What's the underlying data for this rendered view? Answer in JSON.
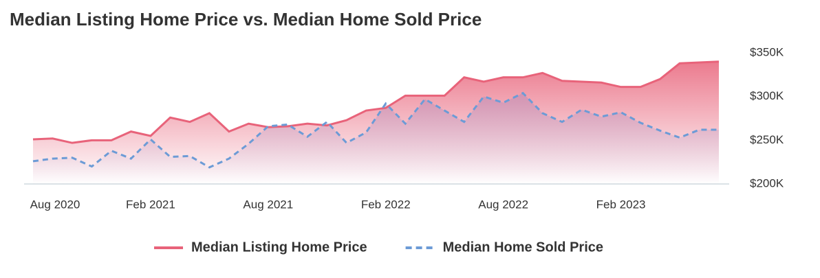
{
  "chart_data": {
    "type": "line",
    "title": "Median Listing Home Price vs. Median Home Sold Price",
    "categories": [
      "Aug 2020",
      null,
      null,
      null,
      null,
      null,
      "Feb 2021",
      null,
      null,
      null,
      null,
      null,
      "Aug 2021",
      null,
      null,
      null,
      null,
      null,
      "Feb 2022",
      null,
      null,
      null,
      null,
      null,
      "Aug 2022",
      null,
      null,
      null,
      null,
      null,
      "Feb 2023",
      null,
      null,
      null,
      null,
      null
    ],
    "series": [
      {
        "name": "Median Listing Home Price",
        "color": "#e8637a",
        "dashed": false,
        "values": [
          251000,
          252000,
          247000,
          250000,
          250000,
          260000,
          255000,
          276000,
          271000,
          281000,
          260000,
          269000,
          265000,
          266000,
          269000,
          267000,
          273000,
          284000,
          287000,
          301000,
          301000,
          301000,
          322000,
          317000,
          322000,
          322000,
          327000,
          318000,
          317000,
          316000,
          311000,
          311000,
          320000,
          338000,
          339000,
          340000
        ]
      },
      {
        "name": "Median Home Sold Price",
        "color": "#6c9bd6",
        "dashed": true,
        "values": [
          226000,
          229000,
          230000,
          220000,
          238000,
          229000,
          251000,
          231000,
          232000,
          219000,
          229000,
          246000,
          266000,
          268000,
          254000,
          271000,
          247000,
          259000,
          292000,
          269000,
          297000,
          284000,
          271000,
          300000,
          293000,
          304000,
          281000,
          271000,
          285000,
          277000,
          282000,
          270000,
          261000,
          253000,
          262000,
          262000
        ]
      }
    ],
    "ylim": [
      200000,
      350000
    ],
    "yticks": [
      {
        "value": 200000,
        "label": "$200K"
      },
      {
        "value": 250000,
        "label": "$250K"
      },
      {
        "value": 300000,
        "label": "$300K"
      },
      {
        "value": 350000,
        "label": "$350K"
      }
    ],
    "grid": false,
    "legend": "bottom"
  }
}
